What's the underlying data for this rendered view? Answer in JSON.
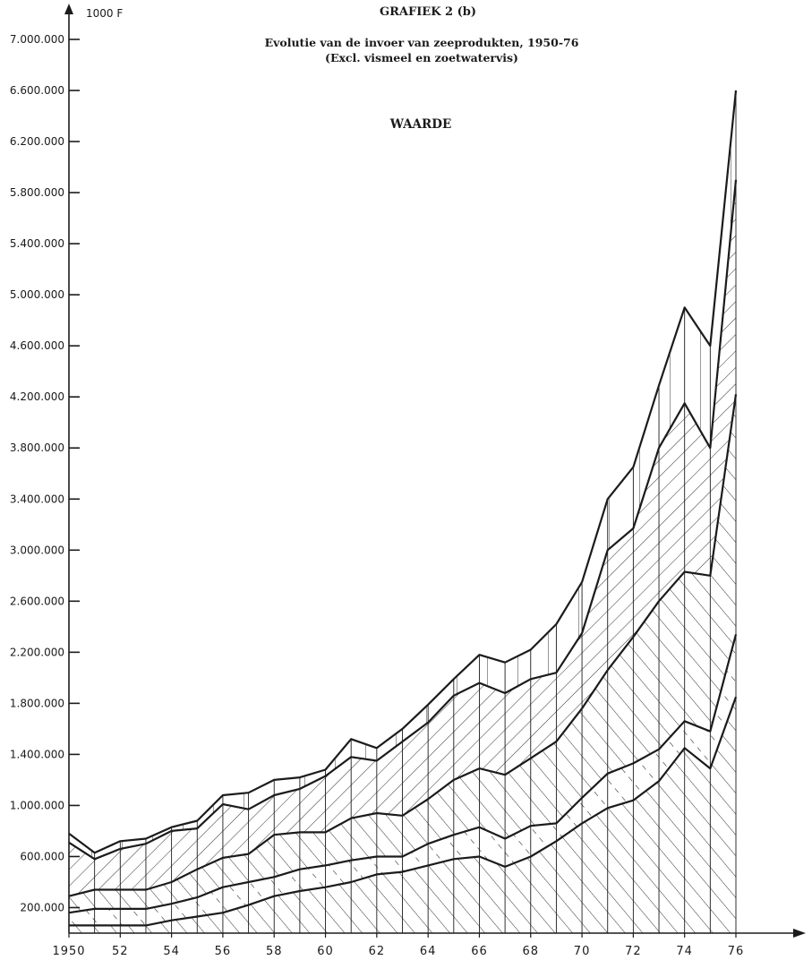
{
  "chart_data": {
    "type": "area",
    "title": "GRAFIEK 2 (b)",
    "subtitle_line1": "Evolutie van de invoer van zeeprodukten, 1950-76",
    "subtitle_line2": "(Excl. vismeel en zoetwatervis)",
    "section_label": "WAARDE",
    "unit_label": "1000 F",
    "x_ticks": [
      "1950",
      "52",
      "54",
      "56",
      "58",
      "60",
      "62",
      "64",
      "66",
      "68",
      "70",
      "72",
      "74",
      "76"
    ],
    "y_ticks": [
      "200.000",
      "600.000",
      "1.000.000",
      "1.400.000",
      "1.800.000",
      "2.200.000",
      "2.600.000",
      "3.000.000",
      "3.400.000",
      "3.800.000",
      "4.200.000",
      "4.600.000",
      "5.000.000",
      "5.400.000",
      "5.800.000",
      "6.200.000",
      "6.600.000",
      "7.000.000"
    ],
    "y_tick_values": [
      200000,
      600000,
      1000000,
      1400000,
      1800000,
      2200000,
      2600000,
      3000000,
      3400000,
      3800000,
      4200000,
      4600000,
      5000000,
      5400000,
      5800000,
      6200000,
      6600000,
      7000000
    ],
    "xlim": [
      1950,
      1976
    ],
    "ylim": [
      0,
      7000000
    ],
    "grid": false,
    "stacked_cumulative": true,
    "x": [
      1950,
      1951,
      1952,
      1953,
      1954,
      1955,
      1956,
      1957,
      1958,
      1959,
      1960,
      1961,
      1962,
      1963,
      1964,
      1965,
      1966,
      1967,
      1968,
      1969,
      1970,
      1971,
      1972,
      1973,
      1974,
      1975,
      1976
    ],
    "series": [
      {
        "values": [
          60000,
          60000,
          60000,
          60000,
          100000,
          130000,
          160000,
          220000,
          290000,
          330000,
          360000,
          400000,
          460000,
          480000,
          530000,
          580000,
          600000,
          520000,
          600000,
          720000,
          860000,
          980000,
          1040000,
          1190000,
          1450000,
          1290000,
          1850000
        ],
        "fill": "hatch-back"
      },
      {
        "values": [
          160000,
          190000,
          190000,
          190000,
          230000,
          280000,
          360000,
          400000,
          440000,
          500000,
          530000,
          570000,
          600000,
          600000,
          700000,
          770000,
          830000,
          740000,
          840000,
          860000,
          1060000,
          1250000,
          1330000,
          1440000,
          1660000,
          1580000,
          2340000
        ],
        "fill": "dash"
      },
      {
        "values": [
          290000,
          340000,
          340000,
          340000,
          400000,
          500000,
          590000,
          620000,
          770000,
          790000,
          790000,
          900000,
          940000,
          920000,
          1050000,
          1200000,
          1290000,
          1240000,
          1370000,
          1500000,
          1760000,
          2060000,
          2320000,
          2600000,
          2830000,
          2800000,
          4220000
        ],
        "fill": "hatch-back"
      },
      {
        "values": [
          710000,
          580000,
          660000,
          700000,
          800000,
          820000,
          1010000,
          970000,
          1080000,
          1130000,
          1230000,
          1380000,
          1350000,
          1500000,
          1650000,
          1860000,
          1960000,
          1880000,
          1990000,
          2040000,
          2350000,
          3000000,
          3170000,
          3800000,
          4150000,
          3800000,
          5900000
        ],
        "fill": "hatch-fwd"
      },
      {
        "values": [
          780000,
          630000,
          720000,
          740000,
          830000,
          880000,
          1080000,
          1100000,
          1200000,
          1220000,
          1280000,
          1520000,
          1450000,
          1600000,
          1790000,
          1990000,
          2180000,
          2120000,
          2220000,
          2420000,
          2750000,
          3400000,
          3650000,
          4290000,
          4900000,
          4600000,
          6600000
        ],
        "fill": "vertical"
      }
    ],
    "colors": {
      "ink": "#1b1b1b",
      "paper": "#ffffff"
    }
  }
}
